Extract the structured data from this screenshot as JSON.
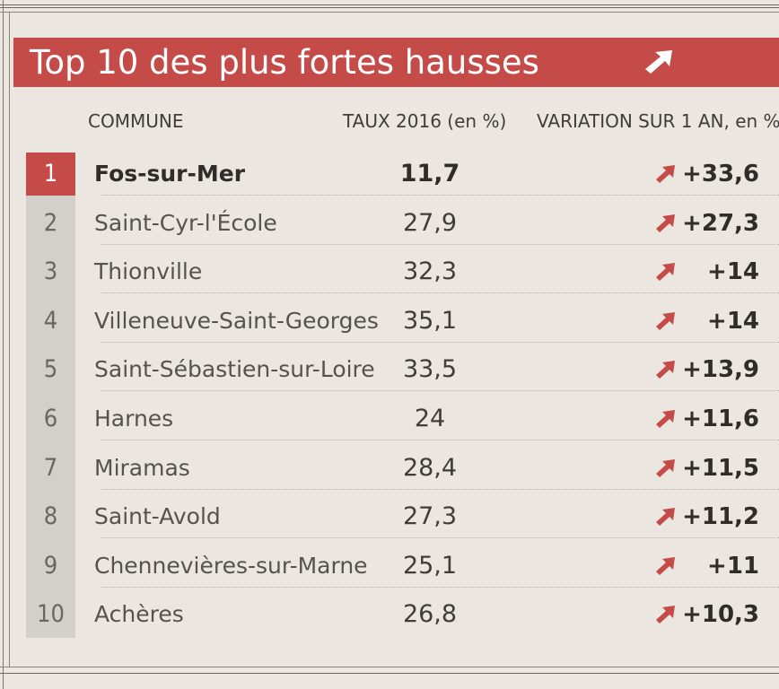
{
  "header": {
    "title": "Top 10 des plus fortes hausses",
    "icon": "arrow-up-right-icon"
  },
  "columns": {
    "commune": "COMMUNE",
    "taux": "TAUX 2016 (en %)",
    "variation": "VARIATION SUR 1 AN, en %"
  },
  "colors": {
    "accent": "#c44b48",
    "rank_background": "#d3cfc9",
    "paper": "#ebe7e0"
  },
  "rows": [
    {
      "rank": "1",
      "commune": "Fos-sur-Mer",
      "taux": "11,7",
      "variation": "+33,6"
    },
    {
      "rank": "2",
      "commune": "Saint-Cyr-l'École",
      "taux": "27,9",
      "variation": "+27,3"
    },
    {
      "rank": "3",
      "commune": "Thionville",
      "taux": "32,3",
      "variation": "+14"
    },
    {
      "rank": "4",
      "commune": "Villeneuve-Saint-Georges",
      "taux": "35,1",
      "variation": "+14"
    },
    {
      "rank": "5",
      "commune": "Saint-Sébastien-sur-Loire",
      "taux": "33,5",
      "variation": "+13,9"
    },
    {
      "rank": "6",
      "commune": "Harnes",
      "taux": "24",
      "variation": "+11,6"
    },
    {
      "rank": "7",
      "commune": "Miramas",
      "taux": "28,4",
      "variation": "+11,5"
    },
    {
      "rank": "8",
      "commune": "Saint-Avold",
      "taux": "27,3",
      "variation": "+11,2"
    },
    {
      "rank": "9",
      "commune": "Chennevières-sur-Marne",
      "taux": "25,1",
      "variation": "+11"
    },
    {
      "rank": "10",
      "commune": "Achères",
      "taux": "26,8",
      "variation": "+10,3"
    }
  ]
}
